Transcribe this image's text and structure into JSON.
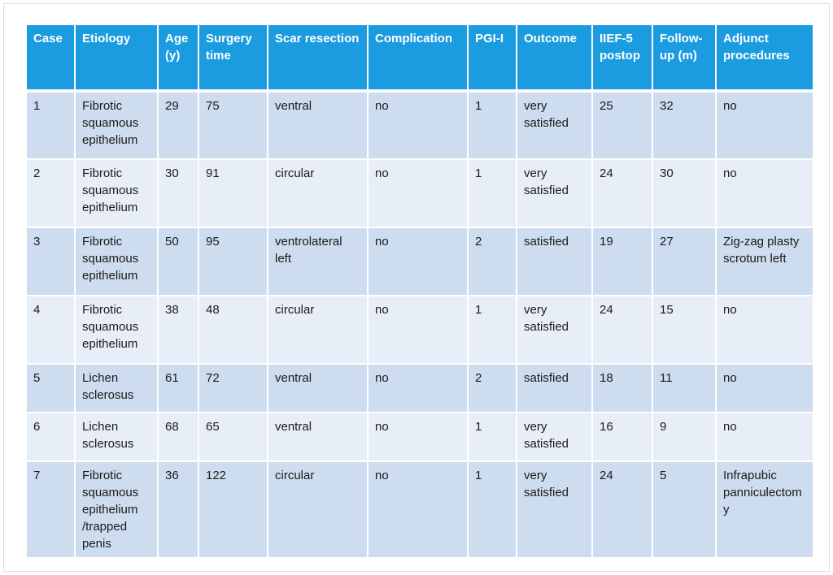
{
  "table": {
    "headers": [
      "Case",
      "Etiology",
      "Age (y)",
      "Surgery time",
      "Scar resection",
      "Complication",
      "PGI-I",
      "Outcome",
      "IIEF-5 postop",
      "Follow-up (m)",
      "Adjunct procedures"
    ],
    "rows": [
      [
        "1",
        "Fibrotic squamous epithelium",
        "29",
        "75",
        "ventral",
        "no",
        "1",
        "very satisfied",
        "25",
        "32",
        "no"
      ],
      [
        "2",
        "Fibrotic squamous epithelium",
        "30",
        "91",
        "circular",
        "no",
        "1",
        "very satisfied",
        "24",
        "30",
        "no"
      ],
      [
        "3",
        "Fibrotic squamous epithelium",
        "50",
        "95",
        "ventrolateral left",
        "no",
        "2",
        "satisfied",
        "19",
        "27",
        "Zig-zag plasty scrotum left"
      ],
      [
        "4",
        "Fibrotic squamous epithelium",
        "38",
        "48",
        "circular",
        "no",
        "1",
        "very satisfied",
        "24",
        "15",
        "no"
      ],
      [
        "5",
        "Lichen sclerosus",
        "61",
        "72",
        "ventral",
        "no",
        "2",
        "satisfied",
        "18",
        "11",
        "no"
      ],
      [
        "6",
        "Lichen sclerosus",
        "68",
        "65",
        "ventral",
        "no",
        "1",
        "very satisfied",
        "16",
        "9",
        "no"
      ],
      [
        "7",
        "Fibrotic squamous epithelium /trapped penis",
        "36",
        "122",
        "circular",
        "no",
        "1",
        "very satisfied",
        "24",
        "5",
        "Infrapubic panniculectomy"
      ]
    ]
  },
  "colors": {
    "header_bg": "#1b9ce0",
    "row_dark": "#cddcef",
    "row_light": "#e8eef7"
  }
}
